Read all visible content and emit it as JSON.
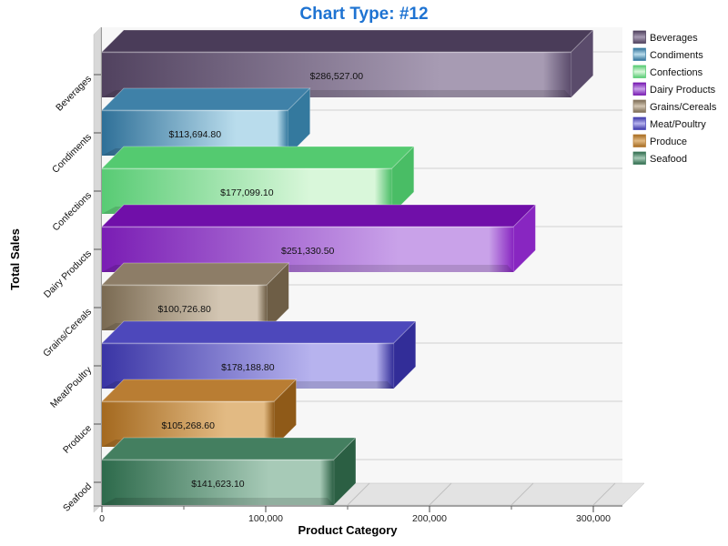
{
  "chart_data": {
    "type": "bar",
    "orientation": "horizontal",
    "style": "3d",
    "title": "Chart Type: #12",
    "title_color": "#1e73d2",
    "xlabel": "Product Category",
    "ylabel": "Total Sales",
    "xlim": [
      0,
      300000
    ],
    "x_ticks": [
      0,
      100000,
      200000,
      300000
    ],
    "x_tick_labels": [
      "0",
      "100,000",
      "200,000",
      "300,000"
    ],
    "x_minor_tick_step": 50000,
    "grid": true,
    "legend_position": "right",
    "categories": [
      "Beverages",
      "Condiments",
      "Confections",
      "Dairy Products",
      "Grains/Cereals",
      "Meat/Poultry",
      "Produce",
      "Seafood"
    ],
    "values": [
      286527.0,
      113694.8,
      177099.1,
      251330.5,
      100726.8,
      178188.8,
      105268.6,
      141623.1
    ],
    "value_labels": [
      "$286,527.00",
      "$113,694.80",
      "$177,099.10",
      "$251,330.50",
      "$100,726.80",
      "$178,188.80",
      "$105,268.60",
      "$141,623.10"
    ],
    "colors": [
      {
        "dark": "#51425f",
        "light": "#a79bb3",
        "top": "#4a3c59",
        "end": "#5a4b6b"
      },
      {
        "dark": "#2f7098",
        "light": "#b9dcec",
        "top": "#3f81a8",
        "end": "#34799e"
      },
      {
        "dark": "#58cb74",
        "light": "#d9f7da",
        "top": "#54ca70",
        "end": "#49bd65"
      },
      {
        "dark": "#7a1db4",
        "light": "#c9a2e9",
        "top": "#700fa9",
        "end": "#8826c1"
      },
      {
        "dark": "#7a6a52",
        "light": "#d3c6b3",
        "top": "#8d7d67",
        "end": "#6e5e46"
      },
      {
        "dark": "#3a35a5",
        "light": "#b7b3ee",
        "top": "#4d48bb",
        "end": "#322d98"
      },
      {
        "dark": "#a4691f",
        "light": "#e2ba83",
        "top": "#b97d33",
        "end": "#8f5a18"
      },
      {
        "dark": "#2d6a4b",
        "light": "#a7cab7",
        "top": "#447f60",
        "end": "#2b5f43"
      }
    ]
  }
}
